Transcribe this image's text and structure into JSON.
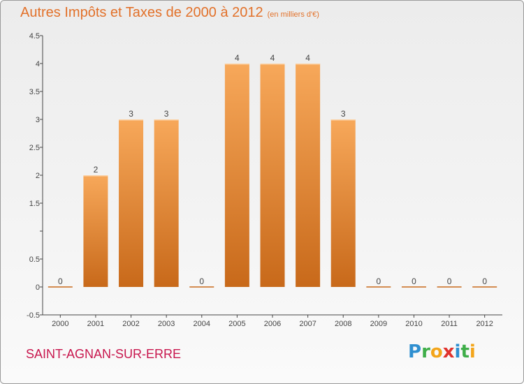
{
  "title": "Autres Impôts et Taxes de 2000 à 2012",
  "subtitle": "(en milliers d'€)",
  "commune": "SAINT-AGNAN-SUR-ERRE",
  "brand": [
    "P",
    "r",
    "o",
    "x",
    "i",
    "t",
    "i"
  ],
  "colors": {
    "bar_top": "#f7a85a",
    "bar_bottom": "#c8691a",
    "title": "#e2712a",
    "commune": "#c8174e"
  },
  "chart_data": {
    "type": "bar",
    "title": "Autres Impôts et Taxes de 2000 à 2012",
    "subtitle": "(en milliers d'€)",
    "categories": [
      "2000",
      "2001",
      "2002",
      "2003",
      "2004",
      "2005",
      "2006",
      "2007",
      "2008",
      "2009",
      "2010",
      "2011",
      "2012"
    ],
    "values": [
      0,
      2,
      3,
      3,
      0,
      4,
      4,
      4,
      3,
      0,
      0,
      0,
      0
    ],
    "value_labels": [
      "0",
      "2",
      "3",
      "3",
      "0",
      "4",
      "4",
      "4",
      "3",
      "0",
      "0",
      "0",
      "0"
    ],
    "ylim": [
      -0.5,
      4.5
    ],
    "yticks": [
      -0.5,
      0,
      0.5,
      1,
      1.5,
      2,
      2.5,
      3,
      3.5,
      4,
      4.5
    ],
    "ytick_labels": [
      "-0.5",
      "0",
      "0.5",
      "",
      "1.5",
      "2",
      "2.5",
      "3",
      "3.5",
      "4",
      "4.5"
    ],
    "grid": false,
    "legend": "none"
  }
}
